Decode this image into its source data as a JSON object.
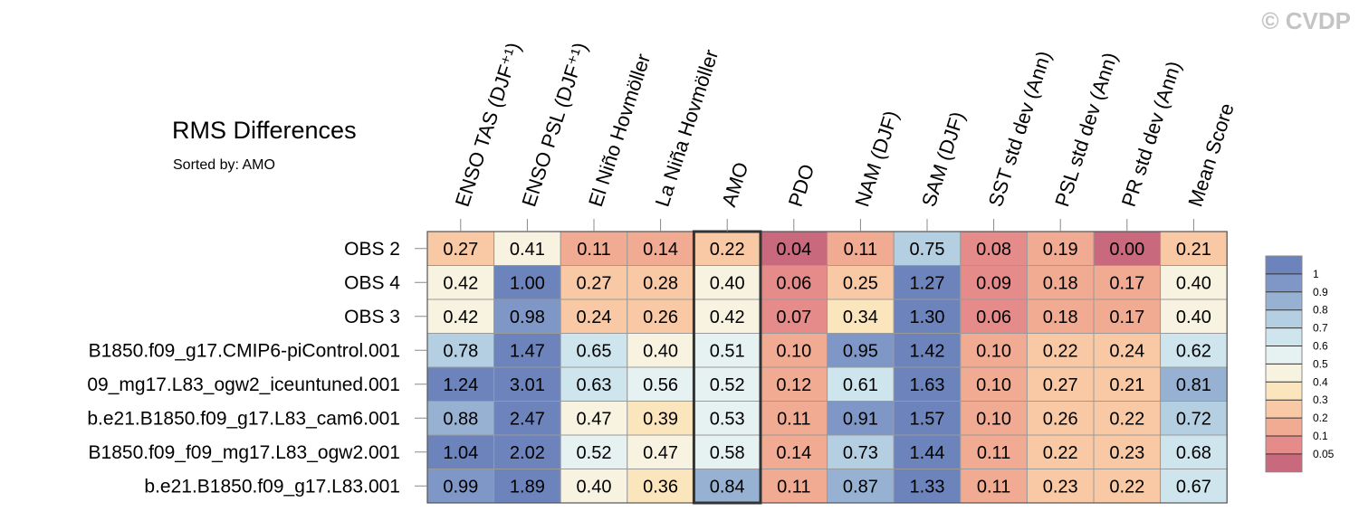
{
  "watermark": "© CVDP",
  "chart_data": {
    "type": "heatmap",
    "title": "RMS Differences",
    "subtitle": "Sorted by: AMO",
    "columns": [
      "ENSO TAS (DJF⁺¹)",
      "ENSO PSL (DJF⁺¹)",
      "El Niño Hovmöller",
      "La Niña Hovmöller",
      "AMO",
      "PDO",
      "NAM (DJF)",
      "SAM (DJF)",
      "SST std dev (Ann)",
      "PSL std dev (Ann)",
      "PR std dev (Ann)",
      "Mean Score"
    ],
    "rows": [
      "OBS 2",
      "OBS 4",
      "OBS 3",
      "B1850.f09_g17.CMIP6-piControl.001",
      "09_mg17.L83_ogw2_iceuntuned.001",
      "b.e21.B1850.f09_g17.L83_cam6.001",
      "B1850.f09_f09_mg17.L83_ogw2.001",
      "b.e21.B1850.f09_g17.L83.001"
    ],
    "values": [
      [
        0.27,
        0.41,
        0.11,
        0.14,
        0.22,
        0.04,
        0.11,
        0.75,
        0.08,
        0.19,
        0.0,
        0.21
      ],
      [
        0.42,
        1.0,
        0.27,
        0.28,
        0.4,
        0.06,
        0.25,
        1.27,
        0.09,
        0.18,
        0.17,
        0.4
      ],
      [
        0.42,
        0.98,
        0.24,
        0.26,
        0.42,
        0.07,
        0.34,
        1.3,
        0.06,
        0.18,
        0.17,
        0.4
      ],
      [
        0.78,
        1.47,
        0.65,
        0.4,
        0.51,
        0.1,
        0.95,
        1.42,
        0.1,
        0.22,
        0.24,
        0.62
      ],
      [
        1.24,
        3.01,
        0.63,
        0.56,
        0.52,
        0.12,
        0.61,
        1.63,
        0.1,
        0.27,
        0.21,
        0.81
      ],
      [
        0.88,
        2.47,
        0.47,
        0.39,
        0.53,
        0.11,
        0.91,
        1.57,
        0.1,
        0.26,
        0.22,
        0.72
      ],
      [
        1.04,
        2.02,
        0.52,
        0.47,
        0.58,
        0.14,
        0.73,
        1.44,
        0.11,
        0.22,
        0.23,
        0.68
      ],
      [
        0.99,
        1.89,
        0.4,
        0.36,
        0.84,
        0.11,
        0.87,
        1.33,
        0.11,
        0.23,
        0.22,
        0.67
      ]
    ],
    "highlighted_column": "AMO",
    "legend": {
      "placement": "right",
      "levels": [
        "1",
        "0.9",
        "0.8",
        "0.7",
        "0.6",
        "0.5",
        "0.4",
        "0.3",
        "0.2",
        "0.1",
        "0.05"
      ],
      "thresholds": [
        0.05,
        0.1,
        0.2,
        0.3,
        0.4,
        0.5,
        0.6,
        0.7,
        0.8,
        0.9,
        1
      ],
      "colors": [
        "#c9697d",
        "#e58c8a",
        "#f1ab92",
        "#f8c9a4",
        "#fbe5bd",
        "#f7f3e0",
        "#e6f1f1",
        "#cfe5ee",
        "#b4cfe2",
        "#97b1d3",
        "#7f97c6",
        "#6c83bb"
      ]
    }
  }
}
